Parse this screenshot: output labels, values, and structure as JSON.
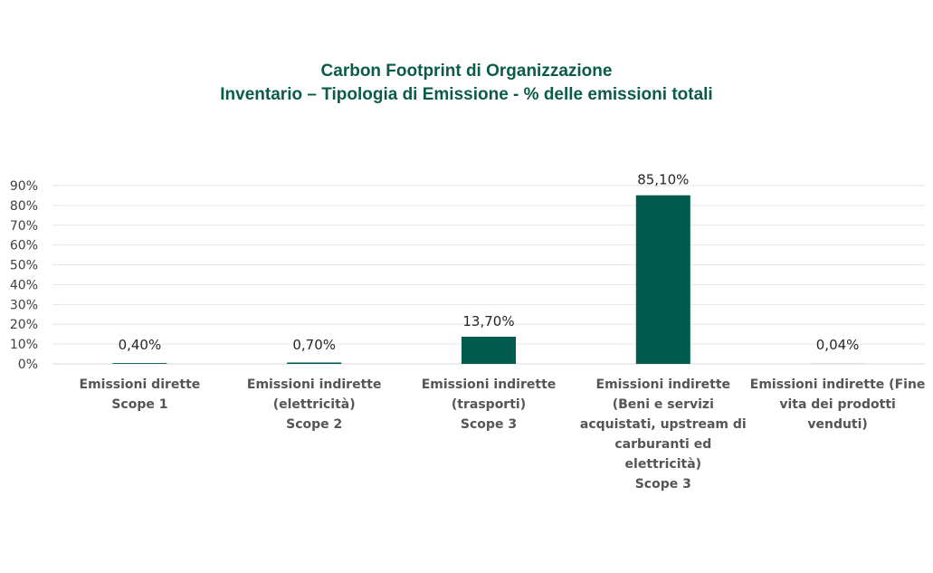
{
  "chart_data": {
    "type": "bar",
    "title": "Carbon Footprint di Organizzazione",
    "subtitle": "Inventario – Tipologia di Emissione - % delle emissioni totali",
    "categories": [
      [
        "Emissioni dirette",
        "Scope 1"
      ],
      [
        "Emissioni indirette",
        "(elettricità)",
        "Scope 2"
      ],
      [
        "Emissioni indirette",
        "(trasporti)",
        "Scope 3"
      ],
      [
        "Emissioni indirette",
        "(Beni e servizi",
        "acquistati, upstream di",
        "carburanti ed",
        "elettricità)",
        "Scope 3"
      ],
      [
        "Emissioni indirette (Fine",
        "vita dei prodotti",
        "venduti)"
      ]
    ],
    "values": [
      0.4,
      0.7,
      13.7,
      85.1,
      0.04
    ],
    "data_labels": [
      "0,40%",
      "0,70%",
      "13,70%",
      "85,10%",
      "0,04%"
    ],
    "ylim": [
      0,
      90
    ],
    "yticks": [
      0,
      10,
      20,
      30,
      40,
      50,
      60,
      70,
      80,
      90
    ],
    "ytick_labels": [
      "0%",
      "10%",
      "20%",
      "30%",
      "40%",
      "50%",
      "60%",
      "70%",
      "80%",
      "90%"
    ],
    "grid": true,
    "bar_color": "#005b4f"
  }
}
